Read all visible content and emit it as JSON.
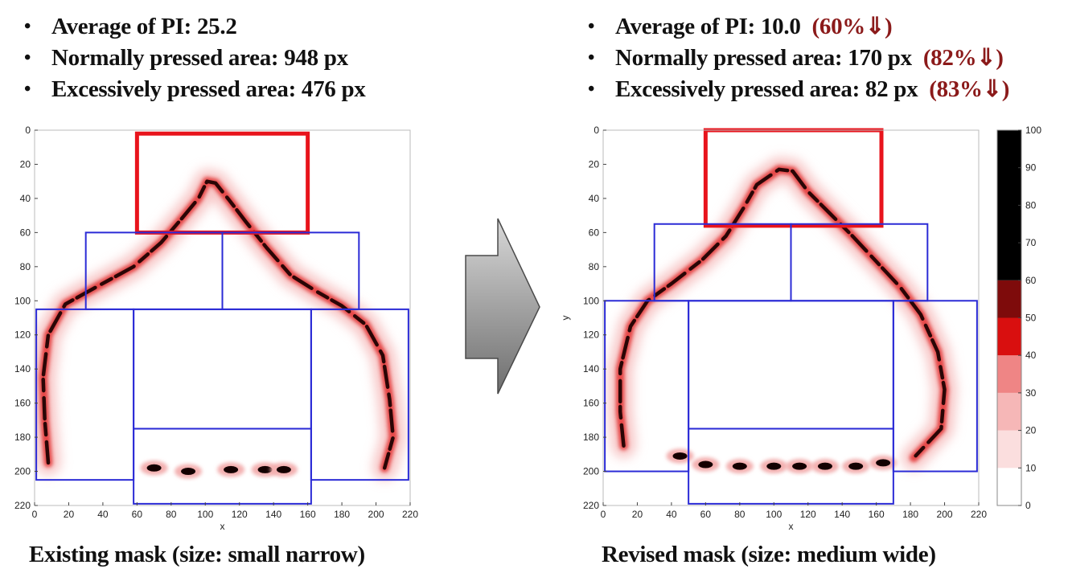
{
  "left": {
    "stats": [
      {
        "label": "Average of PI: 25.2",
        "delta": ""
      },
      {
        "label": "Normally pressed area: 948 px",
        "delta": ""
      },
      {
        "label": "Excessively pressed area: 476 px",
        "delta": ""
      }
    ],
    "caption": "Existing mask (size: small narrow)"
  },
  "right": {
    "stats": [
      {
        "label": "Average of PI: 10.0",
        "delta": "(60%⇓)"
      },
      {
        "label": "Normally pressed area: 170 px",
        "delta": "(82%⇓)"
      },
      {
        "label": "Excessively pressed area: 82 px",
        "delta": "(83%⇓)"
      }
    ],
    "caption": "Revised mask (size: medium wide)"
  },
  "arrow": {
    "color_top": "#d8d8d8",
    "color_bottom": "#6e6e6e"
  },
  "chart_data": [
    {
      "type": "heatmap",
      "title": "",
      "xlabel": "x",
      "ylabel": "",
      "xlim": [
        0,
        220
      ],
      "ylim": [
        220,
        0
      ],
      "xticks": [
        0,
        20,
        40,
        60,
        80,
        100,
        120,
        140,
        160,
        180,
        200,
        220
      ],
      "yticks": [
        0,
        20,
        40,
        60,
        80,
        100,
        120,
        140,
        160,
        180,
        200,
        220
      ],
      "regions": [
        {
          "kind": "excessive",
          "x0": 60,
          "y0": 2,
          "x1": 160,
          "y1": 60,
          "color": "#e8141c"
        },
        {
          "kind": "zone",
          "x0": 30,
          "y0": 60,
          "x1": 110,
          "y1": 105,
          "color": "#2b2bd6"
        },
        {
          "kind": "zone",
          "x0": 110,
          "y0": 60,
          "x1": 190,
          "y1": 105,
          "color": "#2b2bd6"
        },
        {
          "kind": "zone",
          "x0": 1,
          "y0": 105,
          "x1": 58,
          "y1": 205,
          "color": "#2b2bd6"
        },
        {
          "kind": "zone",
          "x0": 58,
          "y0": 105,
          "x1": 162,
          "y1": 175,
          "color": "#2b2bd6"
        },
        {
          "kind": "zone",
          "x0": 162,
          "y0": 105,
          "x1": 219,
          "y1": 205,
          "color": "#2b2bd6"
        },
        {
          "kind": "zone",
          "x0": 58,
          "y0": 175,
          "x1": 162,
          "y1": 219,
          "color": "#2b2bd6"
        }
      ],
      "pressure_path": [
        [
          8,
          195
        ],
        [
          6,
          170
        ],
        [
          5,
          145
        ],
        [
          8,
          120
        ],
        [
          18,
          102
        ],
        [
          36,
          92
        ],
        [
          58,
          80
        ],
        [
          74,
          66
        ],
        [
          86,
          52
        ],
        [
          96,
          40
        ],
        [
          101,
          30
        ],
        [
          106,
          31
        ],
        [
          114,
          41
        ],
        [
          124,
          54
        ],
        [
          136,
          69
        ],
        [
          150,
          85
        ],
        [
          166,
          95
        ],
        [
          180,
          103
        ],
        [
          194,
          114
        ],
        [
          204,
          132
        ],
        [
          208,
          158
        ],
        [
          210,
          180
        ],
        [
          205,
          198
        ]
      ],
      "bottom_blobs": [
        [
          70,
          198
        ],
        [
          90,
          200
        ],
        [
          115,
          199
        ],
        [
          135,
          199
        ],
        [
          146,
          199
        ]
      ]
    },
    {
      "type": "heatmap",
      "title": "",
      "xlabel": "x",
      "ylabel": "y",
      "xlim": [
        0,
        220
      ],
      "ylim": [
        220,
        0
      ],
      "xticks": [
        0,
        20,
        40,
        60,
        80,
        100,
        120,
        140,
        160,
        180,
        200,
        220
      ],
      "yticks": [
        0,
        20,
        40,
        60,
        80,
        100,
        120,
        140,
        160,
        180,
        200,
        220
      ],
      "regions": [
        {
          "kind": "excessive",
          "x0": 60,
          "y0": 0,
          "x1": 163,
          "y1": 56,
          "color": "#e8141c"
        },
        {
          "kind": "zone",
          "x0": 30,
          "y0": 55,
          "x1": 110,
          "y1": 100,
          "color": "#2b2bd6"
        },
        {
          "kind": "zone",
          "x0": 110,
          "y0": 55,
          "x1": 190,
          "y1": 100,
          "color": "#2b2bd6"
        },
        {
          "kind": "zone",
          "x0": 1,
          "y0": 100,
          "x1": 50,
          "y1": 200,
          "color": "#2b2bd6"
        },
        {
          "kind": "zone",
          "x0": 50,
          "y0": 100,
          "x1": 170,
          "y1": 175,
          "color": "#2b2bd6"
        },
        {
          "kind": "zone",
          "x0": 170,
          "y0": 100,
          "x1": 219,
          "y1": 200,
          "color": "#2b2bd6"
        },
        {
          "kind": "zone",
          "x0": 50,
          "y0": 175,
          "x1": 170,
          "y1": 219,
          "color": "#2b2bd6"
        }
      ],
      "pressure_path": [
        [
          12,
          185
        ],
        [
          10,
          165
        ],
        [
          10,
          140
        ],
        [
          16,
          115
        ],
        [
          26,
          100
        ],
        [
          40,
          90
        ],
        [
          58,
          76
        ],
        [
          72,
          62
        ],
        [
          82,
          46
        ],
        [
          90,
          32
        ],
        [
          103,
          23
        ],
        [
          111,
          24
        ],
        [
          120,
          36
        ],
        [
          132,
          48
        ],
        [
          146,
          62
        ],
        [
          160,
          77
        ],
        [
          174,
          92
        ],
        [
          186,
          108
        ],
        [
          196,
          130
        ],
        [
          200,
          152
        ],
        [
          198,
          175
        ],
        [
          182,
          192
        ]
      ],
      "bottom_blobs": [
        [
          45,
          191
        ],
        [
          60,
          196
        ],
        [
          80,
          197
        ],
        [
          100,
          197
        ],
        [
          115,
          197
        ],
        [
          130,
          197
        ],
        [
          148,
          197
        ],
        [
          164,
          195
        ]
      ]
    }
  ],
  "colorbar": {
    "ticks": [
      0,
      10,
      20,
      30,
      40,
      50,
      60,
      70,
      80,
      90,
      100
    ],
    "bands": [
      {
        "from": 0,
        "to": 10,
        "color": "#ffffff"
      },
      {
        "from": 10,
        "to": 20,
        "color": "#fbdede"
      },
      {
        "from": 20,
        "to": 30,
        "color": "#f6b7b7"
      },
      {
        "from": 30,
        "to": 40,
        "color": "#ef8585"
      },
      {
        "from": 40,
        "to": 50,
        "color": "#d90f0f"
      },
      {
        "from": 50,
        "to": 60,
        "color": "#7e0b0b"
      },
      {
        "from": 60,
        "to": 100,
        "color": "#000000"
      }
    ]
  }
}
